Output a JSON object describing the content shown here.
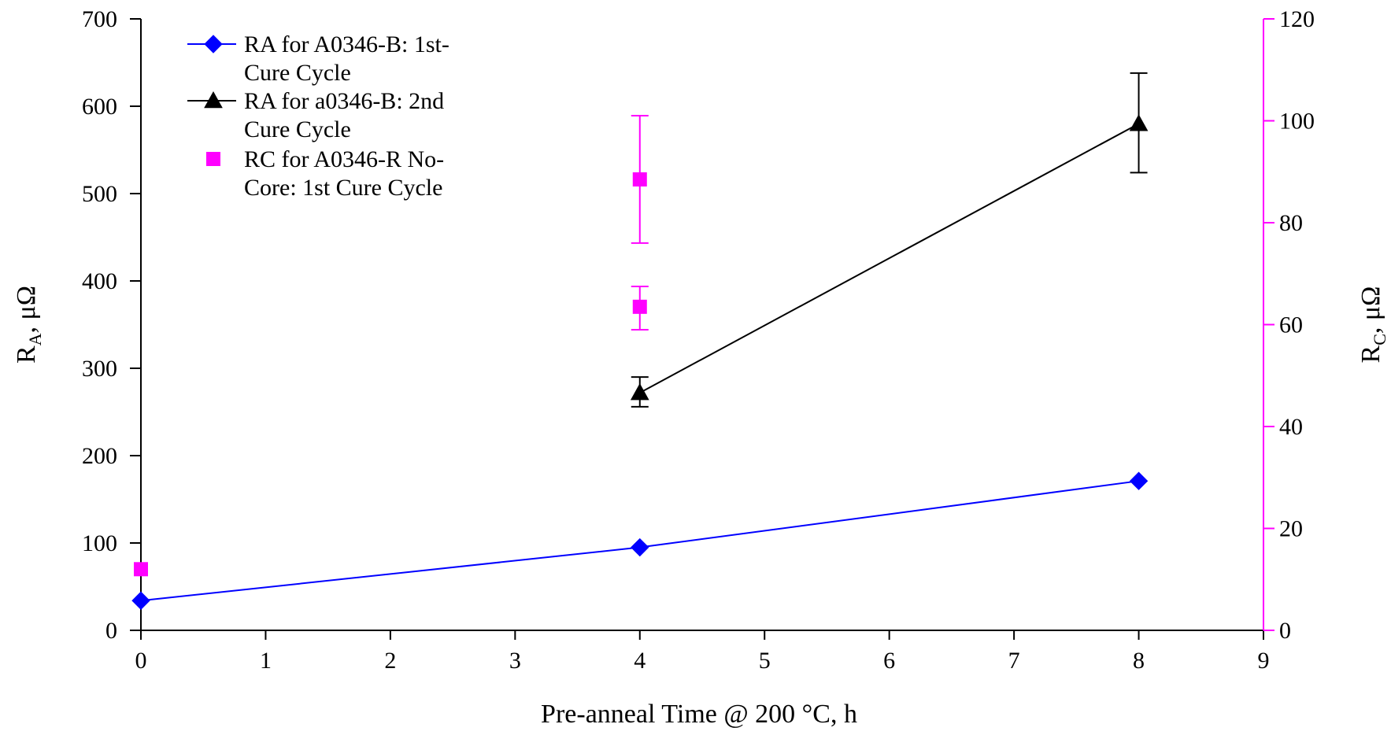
{
  "chart_data": {
    "type": "scatter",
    "xlabel": "Pre-anneal Time @ 200 °C, h",
    "ylabel_left": {
      "main": "R",
      "sub": "A",
      "unit": ", μΩ"
    },
    "ylabel_right": {
      "main": "R",
      "sub": "C",
      "unit": ", μΩ"
    },
    "xlim": [
      0,
      9
    ],
    "ylim_left": [
      0,
      700
    ],
    "ylim_right": [
      0,
      120
    ],
    "x_ticks": [
      0,
      1,
      2,
      3,
      4,
      5,
      6,
      7,
      8,
      9
    ],
    "y_left_ticks": [
      0,
      100,
      200,
      300,
      400,
      500,
      600,
      700
    ],
    "y_right_ticks": [
      0,
      20,
      40,
      60,
      80,
      100,
      120
    ],
    "grid": false,
    "legend_position": "top-left",
    "colors": {
      "left_axis": "#000000",
      "right_axis": "#ff00ff"
    },
    "series": [
      {
        "name": "RA for A0346-B: 1st-Cure Cycle",
        "legend_lines": [
          "RA for A0346-B: 1st-",
          "Cure Cycle"
        ],
        "axis": "left",
        "marker": "diamond",
        "line": true,
        "color": "#0000ff",
        "points": [
          {
            "x": 0,
            "y": 34
          },
          {
            "x": 4,
            "y": 95
          },
          {
            "x": 8,
            "y": 171
          }
        ]
      },
      {
        "name": "RA for a0346-B: 2nd Cure Cycle",
        "legend_lines": [
          "RA for a0346-B: 2nd",
          "Cure Cycle"
        ],
        "axis": "left",
        "marker": "triangle",
        "line": true,
        "color": "#000000",
        "points": [
          {
            "x": 4,
            "y": 272,
            "err_low": 256,
            "err_high": 290
          },
          {
            "x": 8,
            "y": 580,
            "err_low": 524,
            "err_high": 638
          }
        ]
      },
      {
        "name": "RC for A0346-R No-Core: 1st Cure Cycle",
        "legend_lines": [
          "RC for A0346-R No-",
          "Core: 1st Cure Cycle"
        ],
        "axis": "right",
        "marker": "square",
        "line": false,
        "color": "#ff00ff",
        "points": [
          {
            "x": 0,
            "y": 12
          },
          {
            "x": 4,
            "y": 88.5,
            "err_low": 76,
            "err_high": 101
          },
          {
            "x": 4,
            "y": 63.5,
            "err_low": 59,
            "err_high": 67.5
          }
        ]
      }
    ]
  }
}
